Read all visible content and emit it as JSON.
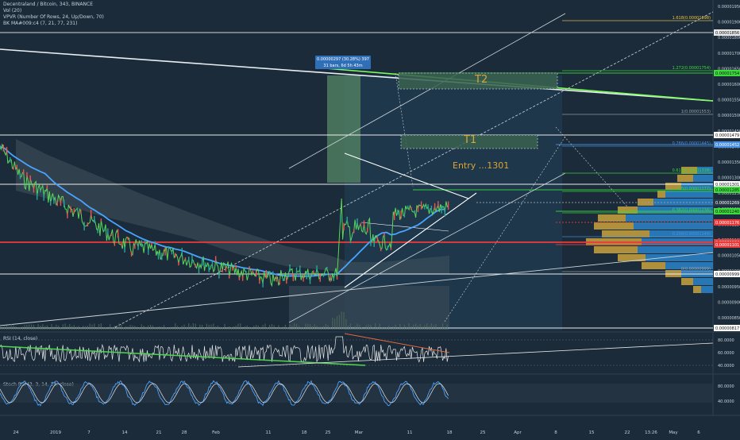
{
  "header": {
    "title": "Decentraland / Bitcoin, 343, BINANCE",
    "vol": "Vol (20)",
    "vpvr": "VPVR (Number Of Rows, 24, Up/Down, 70)",
    "bkma": "BK MA#009:c4 (7, 21, 77, 231)"
  },
  "measure_tooltip": {
    "line1": "0.00000297 (30.28%) 397",
    "line2": "31 bars, 6d 5h 43m"
  },
  "annotations": {
    "t2": "T2",
    "t1": "T1",
    "entry": "Entry ...1301"
  },
  "fib_levels": [
    {
      "label": "1.618(0.00001898)",
      "color": "#e8c547"
    },
    {
      "label": "1.272(0.00001754)",
      "color": "#3bdc3b"
    },
    {
      "label": "1(0.00001553)",
      "color": "#9aa3ac"
    },
    {
      "label": "0.786(0.00001445)",
      "color": "#4a90e2"
    },
    {
      "label": "0.618(0.00001338)",
      "color": "#3bdc3b"
    },
    {
      "label": "0.5(0.00001277)",
      "color": "#3bdc3b"
    },
    {
      "label": "0.382(0.00001238)",
      "color": "#3bdc3b"
    },
    {
      "label": "0.236(0.00001144)",
      "color": "#4a90e2"
    },
    {
      "label": "0(0.00000999)",
      "color": "#9aa3ac"
    }
  ],
  "price_axis": {
    "ticks": [
      "0.00001950",
      "0.00001900",
      "0.00001800",
      "0.00001700",
      "0.00001650",
      "0.00001600",
      "0.00001550",
      "0.00001500",
      "0.00001450",
      "0.00001400",
      "0.00001350",
      "0.00001300",
      "0.00001250",
      "0.00001200",
      "0.00001150",
      "0.00001100",
      "0.00001050",
      "0.00001000",
      "0.00000950",
      "0.00000900",
      "0.00000850"
    ],
    "tags": [
      {
        "text": "0.00001856",
        "bg": "#e8e8e8",
        "fg": "#111111"
      },
      {
        "text": "0.00001754",
        "bg": "#3bdc3b",
        "fg": "#111111"
      },
      {
        "text": "0.00001479",
        "bg": "#ffffff",
        "fg": "#111111"
      },
      {
        "text": "0.00001452",
        "bg": "#4a90e2",
        "fg": "#ffffff"
      },
      {
        "text": "0.00001301",
        "bg": "#ffffff",
        "fg": "#111111"
      },
      {
        "text": "0.00001285",
        "bg": "#3bdc3b",
        "fg": "#111111"
      },
      {
        "text": "0.00001269",
        "bg": "#2a3a48",
        "fg": "#ffffff"
      },
      {
        "text": "0.00001240",
        "bg": "#3bdc3b",
        "fg": "#111111"
      },
      {
        "text": "0.00001176",
        "bg": "#e83a3a",
        "fg": "#ffffff"
      },
      {
        "text": "0.00001104",
        "bg": "#e83a3a",
        "fg": "#ffffff"
      },
      {
        "text": "0.00001101",
        "bg": "#e83a3a",
        "fg": "#ffffff"
      },
      {
        "text": "0.00000999",
        "bg": "#ffffff",
        "fg": "#111111"
      },
      {
        "text": "0.00000817",
        "bg": "#ffffff",
        "fg": "#111111"
      }
    ]
  },
  "rsi_pane": {
    "title": "RSI (14, close)",
    "ticks": [
      "80.0000",
      "60.0000",
      "40.0000"
    ]
  },
  "stoch_pane": {
    "title": "Stoch RSI (3, 3, 14, 14, close)",
    "ticks": [
      "80.0000",
      "40.0000"
    ]
  },
  "time_axis": {
    "labels": [
      "24",
      "2019",
      "7",
      "14",
      "21",
      "28",
      "Feb",
      "11",
      "18",
      "25",
      "Mar",
      "11",
      "18",
      "25",
      "Apr",
      "8",
      "15",
      "22",
      "13:26",
      "May",
      "6"
    ]
  },
  "chart_data": {
    "type": "line",
    "symbol": "Decentraland / Bitcoin",
    "exchange": "BINANCE",
    "timeframe": "343",
    "approx_price_path": [
      {
        "t": "Dec 24",
        "close": 1.44e-05
      },
      {
        "t": "2019",
        "close": 1.31e-05
      },
      {
        "t": "Jan 7",
        "close": 1.22e-05
      },
      {
        "t": "Jan 14",
        "close": 1.15e-05
      },
      {
        "t": "Jan 21",
        "close": 1.1e-05
      },
      {
        "t": "Jan 28",
        "close": 1.09e-05
      },
      {
        "t": "Feb",
        "close": 1.03e-05
      },
      {
        "t": "Feb 11",
        "close": 1e-05
      },
      {
        "t": "Feb 18",
        "close": 1.01e-05
      },
      {
        "t": "Feb 25",
        "close": 9.9e-06
      },
      {
        "t": "Feb 27",
        "close": 1.33e-05
      },
      {
        "t": "Mar",
        "close": 1.15e-05
      },
      {
        "t": "Mar 7",
        "close": 1.16e-05
      },
      {
        "t": "Mar 11",
        "close": 1.25e-05
      },
      {
        "t": "Mar 18",
        "close": 1.3e-05
      }
    ],
    "horizontal_levels": [
      1.856e-05,
      1.754e-05,
      1.479e-05,
      1.452e-05,
      1.301e-05,
      1.285e-05,
      1.24e-05,
      1.176e-05,
      1.104e-05,
      9.99e-06,
      8.17e-06
    ],
    "targets": {
      "T1": 1.452e-05,
      "T2": 1.754e-05,
      "entry": 1.301e-05
    },
    "measured_move_pct": 30.28
  }
}
